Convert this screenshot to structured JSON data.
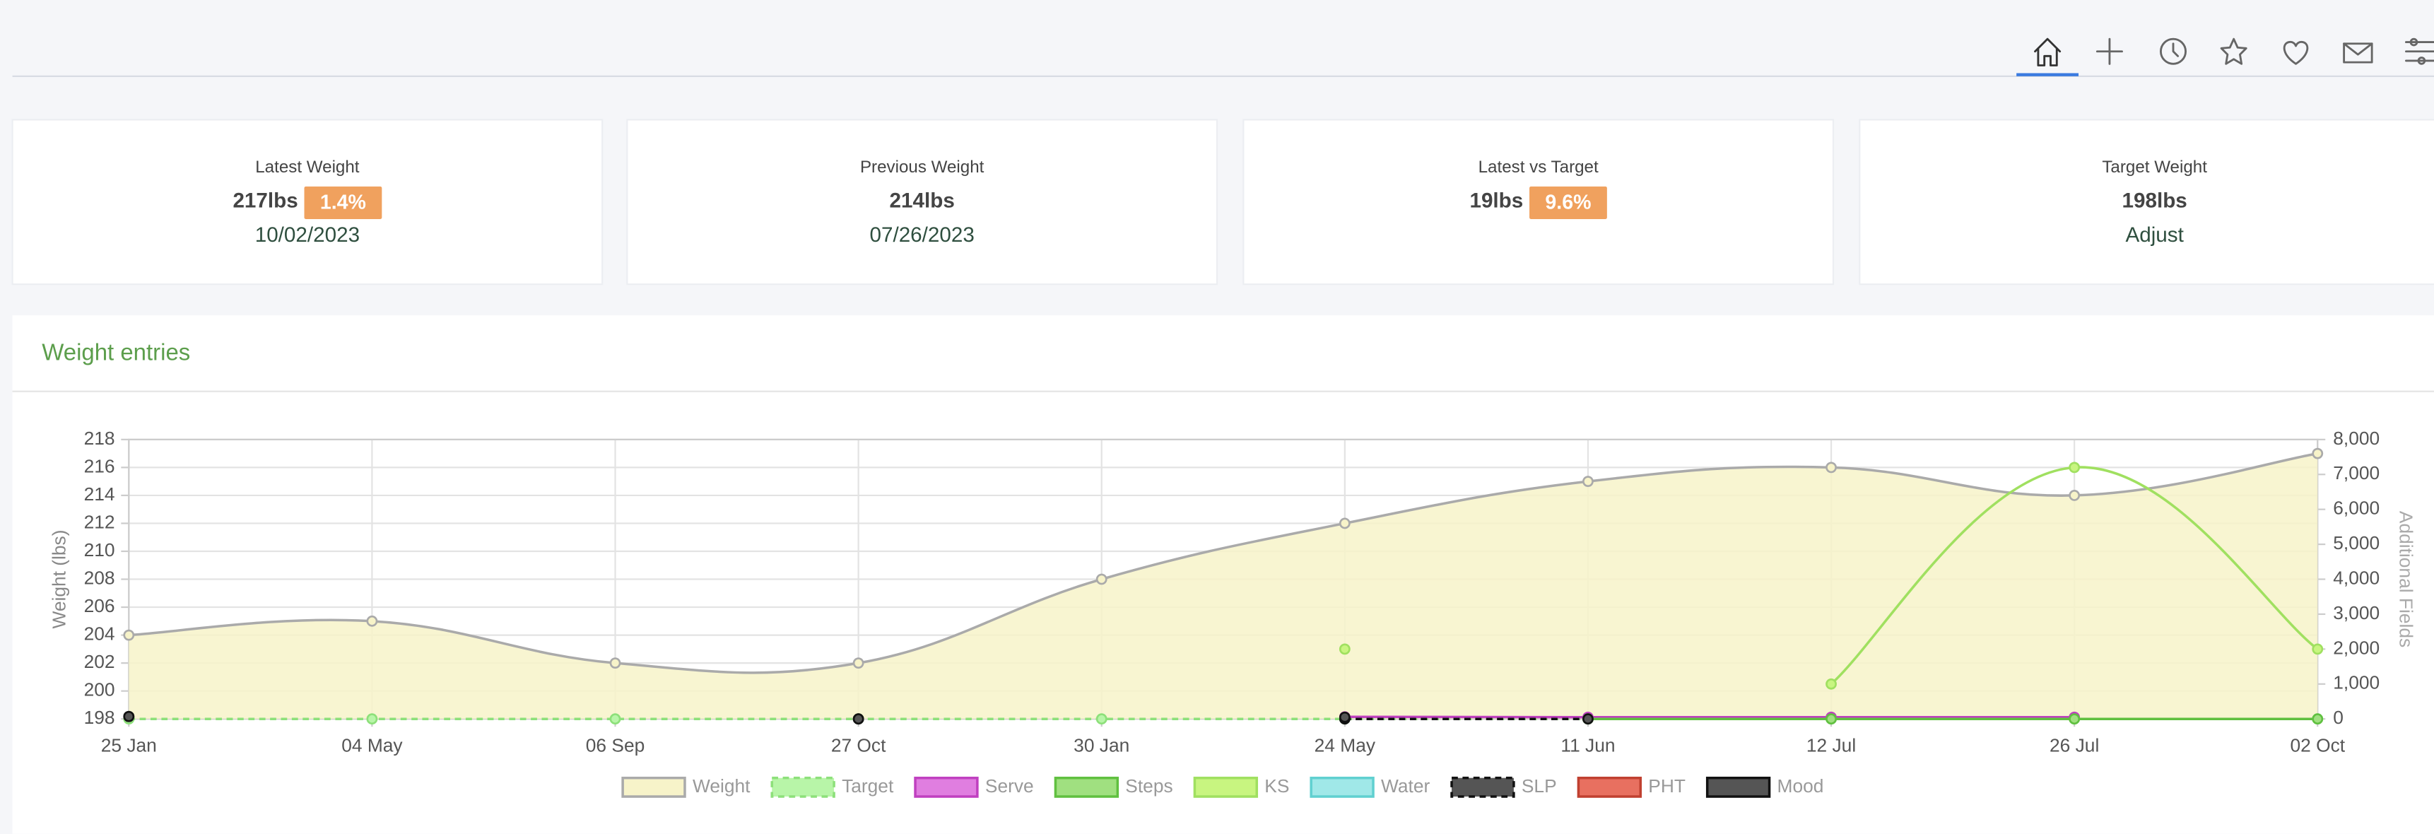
{
  "cards": [
    {
      "label": "Latest Weight",
      "value": "217lbs",
      "badge": "1.4%",
      "sub": "10/02/2023"
    },
    {
      "label": "Previous Weight",
      "value": "214lbs",
      "sub": "07/26/2023"
    },
    {
      "label": "Latest vs Target",
      "value": "19lbs",
      "badge": "9.6%"
    },
    {
      "label": "Target Weight",
      "value": "198lbs",
      "link": "Adjust"
    }
  ],
  "panel": {
    "title": "Weight entries"
  },
  "chart_data": {
    "type": "line",
    "categories": [
      "25 Jan",
      "04 May",
      "06 Sep",
      "27 Oct",
      "30 Jan",
      "24 May",
      "11 Jun",
      "12 Jul",
      "26 Jul",
      "02 Oct"
    ],
    "ylabel": "Weight (lbs)",
    "y2label": "Additional Fields",
    "ylim": [
      198,
      218
    ],
    "yticks": [
      198,
      200,
      202,
      204,
      206,
      208,
      210,
      212,
      214,
      216,
      218
    ],
    "y2lim": [
      0,
      8000
    ],
    "y2ticks": [
      0,
      {
        "value": 1000,
        "label": "1,000"
      },
      {
        "value": 2000,
        "label": "2,000"
      },
      {
        "value": 3000,
        "label": "3,000"
      },
      {
        "value": 4000,
        "label": "4,000"
      },
      {
        "value": 5000,
        "label": "5,000"
      },
      {
        "value": 6000,
        "label": "6,000"
      },
      {
        "value": 7000,
        "label": "7,000"
      },
      {
        "value": 8000,
        "label": "8,000"
      }
    ],
    "grid": true,
    "series": [
      {
        "name": "Weight",
        "color": "#f7f3c9",
        "border": "#aaaaaa",
        "fill": true,
        "values": [
          204,
          205,
          202,
          202,
          208,
          212,
          215,
          216,
          214,
          217
        ]
      },
      {
        "name": "Target",
        "color": "#b8f5a8",
        "border": "#8de07a",
        "dashed": true,
        "values": [
          198,
          198,
          198,
          198,
          198,
          198,
          198,
          198,
          198,
          198
        ]
      },
      {
        "name": "Serve",
        "color": "#e07ee0",
        "border": "#c040c0",
        "axis": "y2",
        "values": [
          null,
          null,
          null,
          null,
          null,
          60,
          50,
          50,
          50,
          null
        ]
      },
      {
        "name": "Steps",
        "color": "#a0e080",
        "border": "#60c040",
        "axis": "y2",
        "values": [
          null,
          null,
          null,
          null,
          null,
          null,
          0,
          0,
          0,
          0
        ]
      },
      {
        "name": "KS",
        "color": "#c8f580",
        "border": "#a0e060",
        "axis": "y2",
        "values": [
          null,
          null,
          null,
          null,
          null,
          2000,
          null,
          1000,
          7200,
          2000
        ]
      },
      {
        "name": "Water",
        "color": "#a0e8e8",
        "border": "#60d0d0",
        "axis": "y2",
        "values": [
          null,
          null,
          null,
          null,
          null,
          null,
          null,
          null,
          null,
          null
        ]
      },
      {
        "name": "SLP",
        "color": "#555555",
        "border": "#111111",
        "axis": "y2",
        "dashed": true,
        "values": [
          70,
          null,
          null,
          0,
          null,
          0,
          0,
          null,
          null,
          null
        ]
      },
      {
        "name": "PHT",
        "color": "#e87060",
        "border": "#c04030",
        "axis": "y2",
        "values": [
          null,
          null,
          null,
          null,
          null,
          null,
          null,
          null,
          null,
          null
        ]
      },
      {
        "name": "Mood",
        "color": "#555555",
        "border": "#111111",
        "axis": "y2",
        "values": [
          70,
          null,
          null,
          0,
          null,
          50,
          null,
          null,
          null,
          null
        ]
      }
    ]
  }
}
